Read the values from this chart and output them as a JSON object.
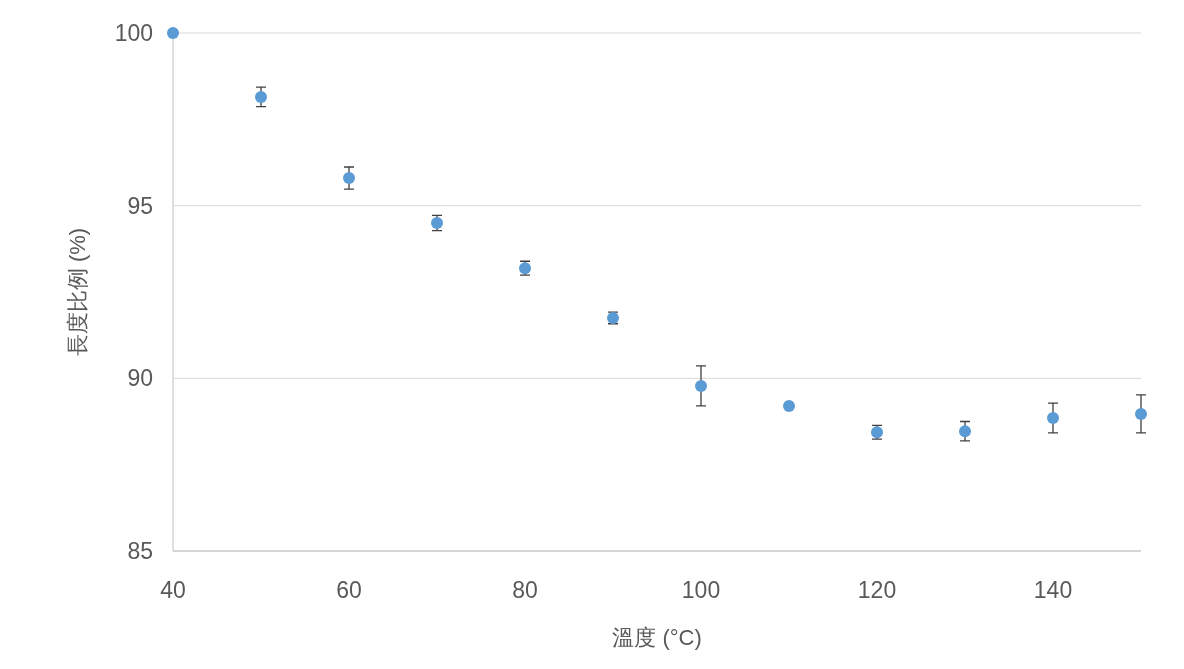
{
  "chart_data": {
    "type": "scatter",
    "xlabel": "溫度 (°C)",
    "ylabel": "長度比例 (%)",
    "x": [
      40,
      50,
      60,
      70,
      80,
      90,
      100,
      110,
      120,
      130,
      140,
      150
    ],
    "series": [
      {
        "color": "#5b9bd5",
        "values": [
          100,
          98.15,
          95.8,
          94.5,
          93.19,
          91.75,
          89.78,
          89.2,
          88.44,
          88.47,
          88.85,
          88.97
        ],
        "errors": [
          null,
          0.28,
          0.32,
          0.22,
          0.2,
          0.17,
          0.58,
          null,
          0.2,
          0.28,
          0.43,
          0.55
        ]
      }
    ],
    "xlim": [
      40,
      150
    ],
    "xticks": [
      40,
      60,
      80,
      100,
      120,
      140
    ],
    "ylim": [
      85,
      100
    ],
    "yticks": [
      85,
      90,
      95,
      100
    ],
    "grid": "y",
    "marker": "circle"
  }
}
